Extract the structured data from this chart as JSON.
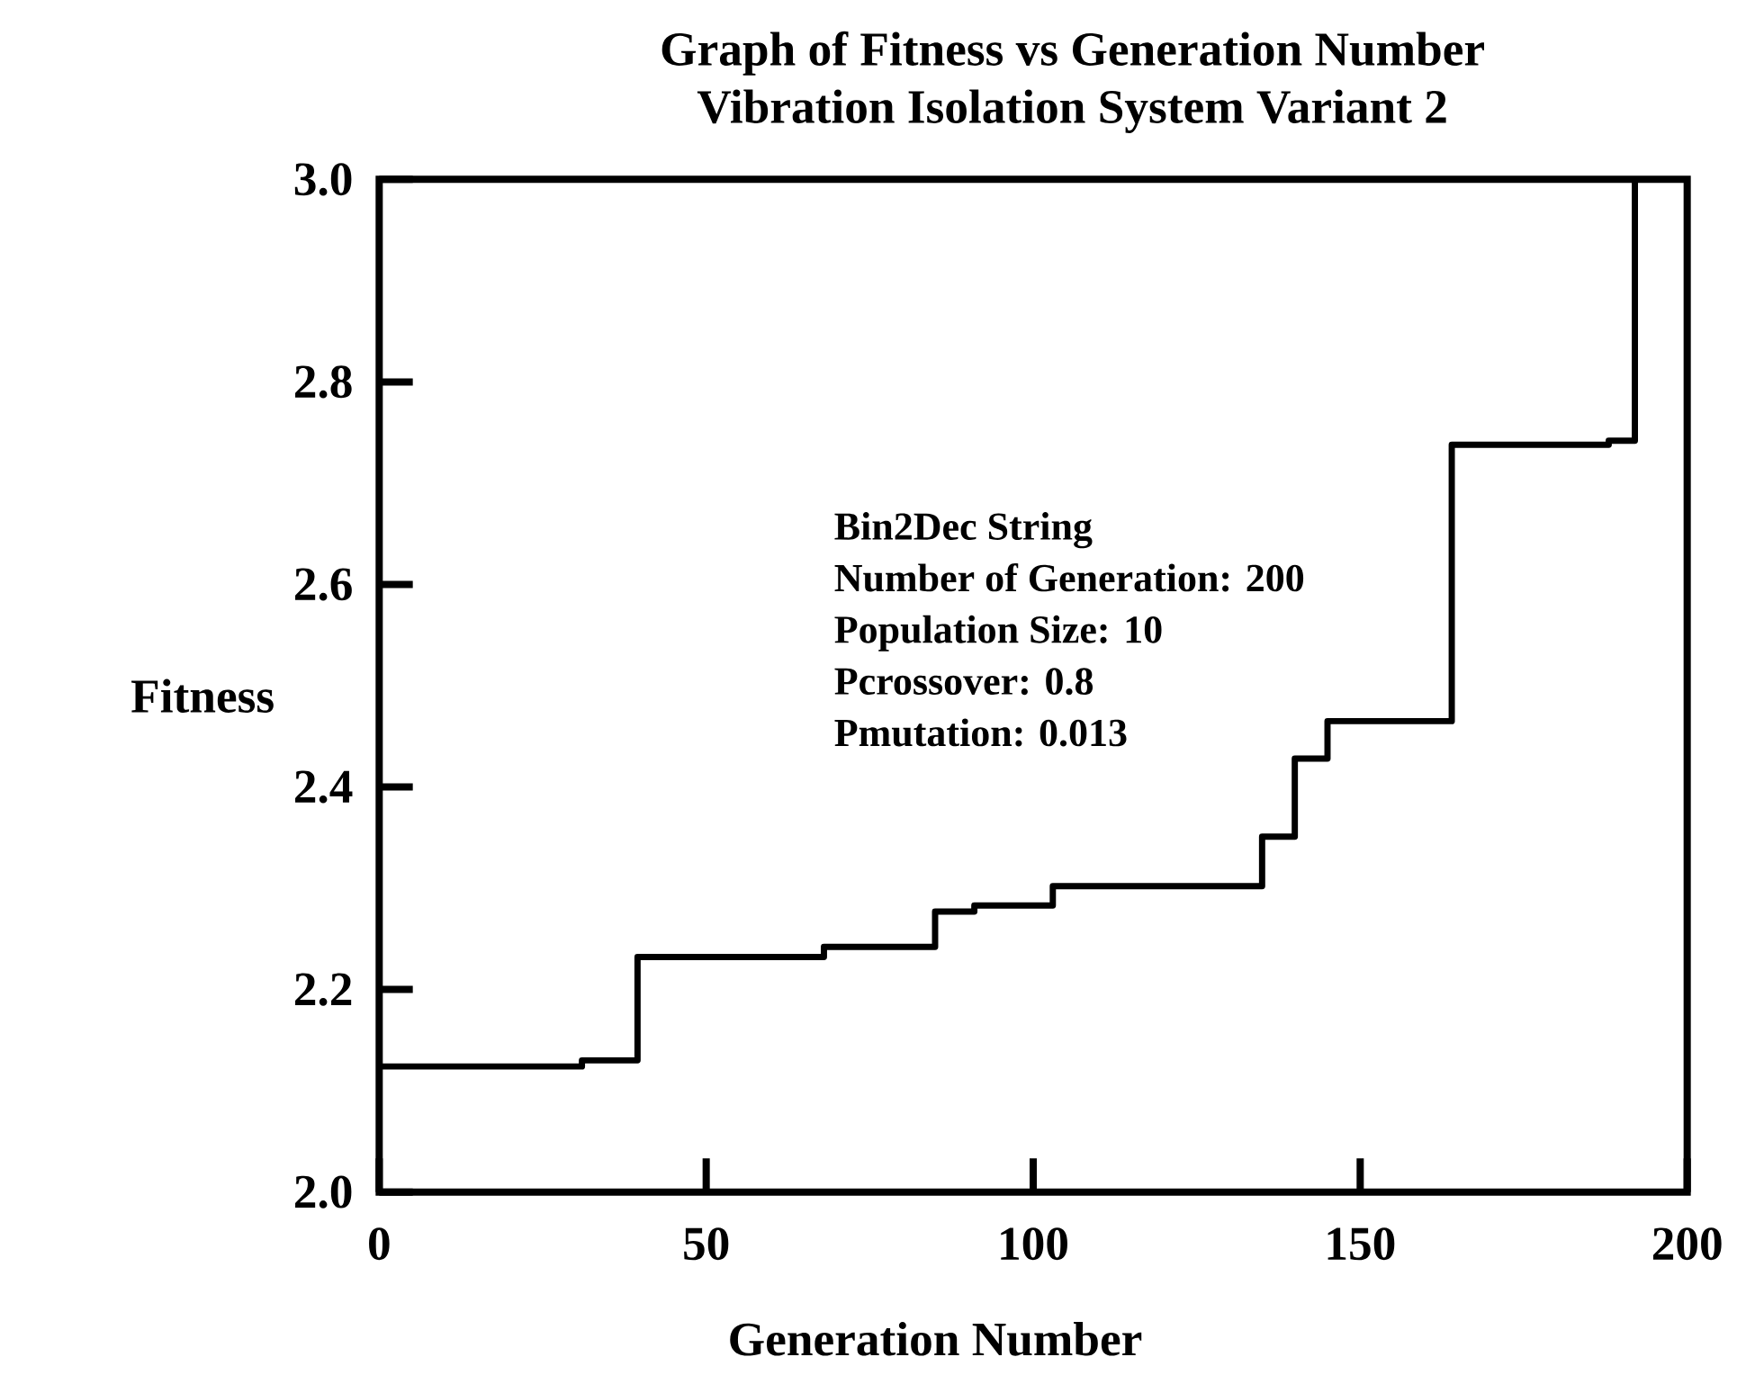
{
  "chart_data": {
    "type": "step",
    "title": "Graph of Fitness vs Generation Number",
    "subtitle": "Vibration Isolation System Variant 2",
    "xlabel": "Generation Number",
    "ylabel": "Fitness",
    "annotations": [
      "Bin2Dec String",
      "Number of Generation: 200",
      "Population Size: 10",
      "Pcrossover: 0.8",
      "Pmutation: 0.013"
    ],
    "x": [
      0,
      31,
      39.5,
      68,
      85,
      91,
      103,
      135,
      140,
      145,
      164,
      188,
      192
    ],
    "series": [
      {
        "color": "#000000",
        "values": [
          2.124,
          2.13,
          2.232,
          2.242,
          2.277,
          2.283,
          2.302,
          2.351,
          2.428,
          2.465,
          2.738,
          2.742,
          3.0
        ]
      }
    ],
    "xlim": [
      0,
      200
    ],
    "ylim": [
      2.0,
      3.0
    ],
    "xticks": [
      0,
      50,
      100,
      150,
      200
    ],
    "yticks": [
      {
        "value": 2.0,
        "label": "2.0"
      },
      {
        "value": 2.2,
        "label": "2.2"
      },
      {
        "value": 2.4,
        "label": "2.4"
      },
      {
        "value": 2.6,
        "label": "2.6"
      },
      {
        "value": 2.8,
        "label": "2.8"
      },
      {
        "value": 3.0,
        "label": "3.0"
      }
    ],
    "line_style": "solid"
  }
}
